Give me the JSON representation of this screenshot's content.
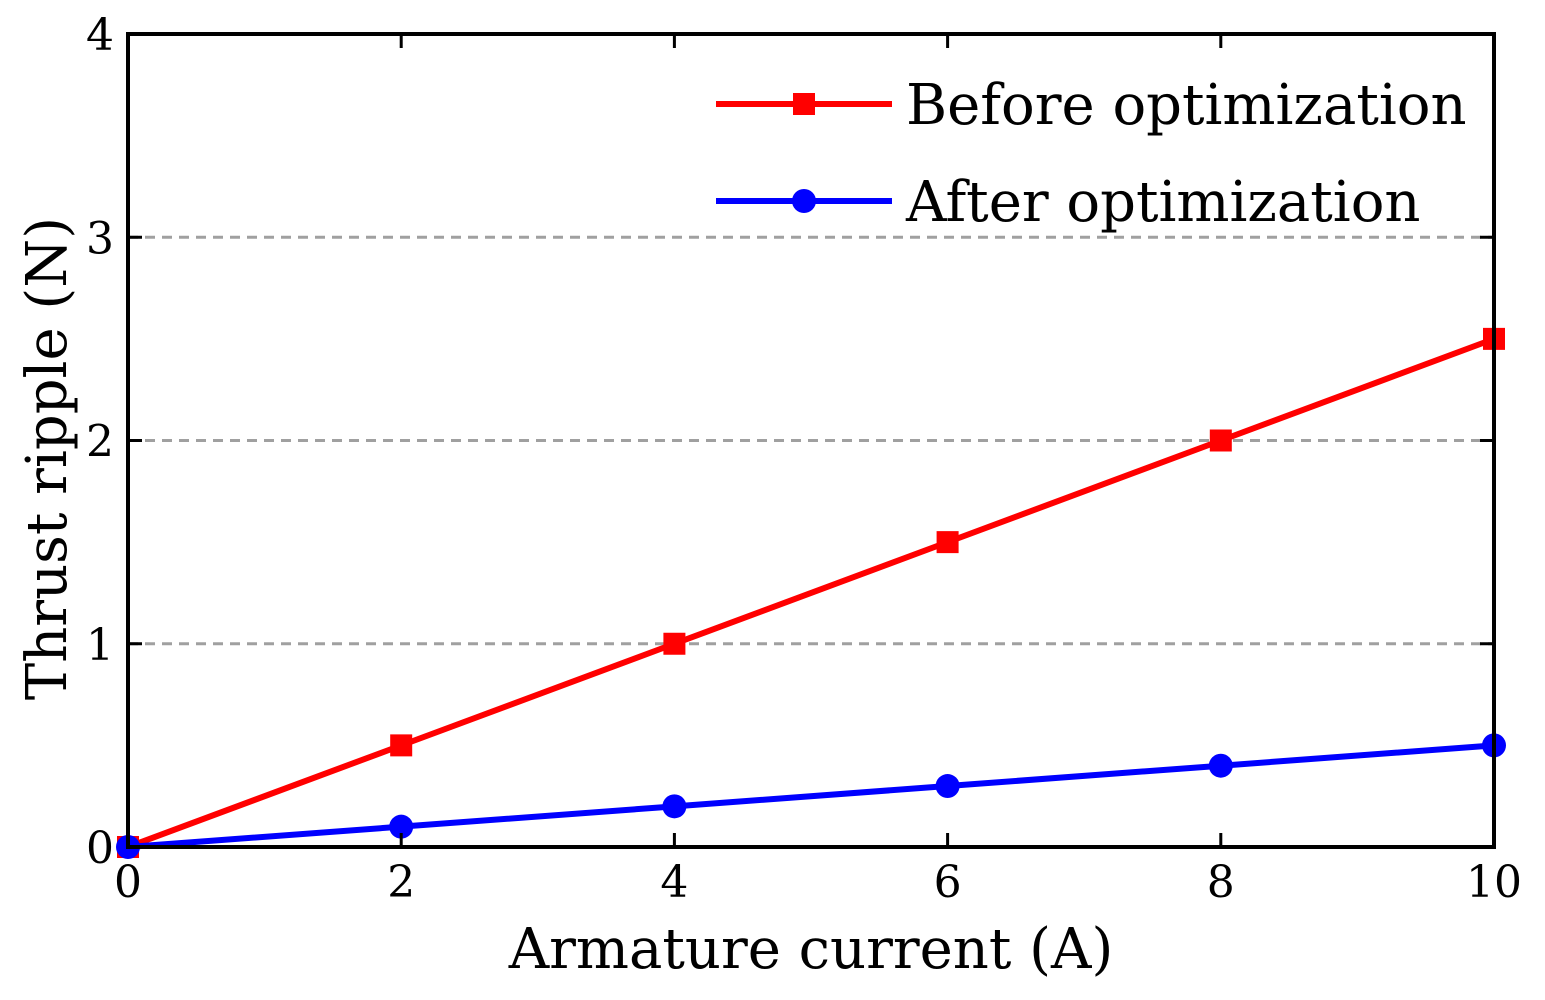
{
  "chart_data": {
    "type": "line",
    "title": "",
    "xlabel": "Armature current (A)",
    "ylabel": "Thrust ripple (N)",
    "xlim": [
      0,
      10
    ],
    "ylim": [
      0,
      4
    ],
    "xticks": [
      0,
      2,
      4,
      6,
      8,
      10
    ],
    "yticks": [
      0,
      1,
      2,
      3,
      4
    ],
    "xtick_labels": [
      "0",
      "2",
      "4",
      "6",
      "8",
      "10"
    ],
    "ytick_labels": [
      "0",
      "1",
      "2",
      "3",
      "4"
    ],
    "grid": "horizontal dashed at 1, 2, 3",
    "legend_position": "top-right",
    "x": [
      0,
      2,
      4,
      6,
      8,
      10
    ],
    "series": [
      {
        "name": "Before optimization",
        "marker": "square",
        "color": "#ff0000",
        "values": [
          0,
          0.5,
          1.0,
          1.5,
          2.0,
          2.5
        ]
      },
      {
        "name": "After optimization",
        "marker": "circle",
        "color": "#0000ff",
        "values": [
          0,
          0.1,
          0.2,
          0.3,
          0.4,
          0.5
        ]
      }
    ]
  }
}
